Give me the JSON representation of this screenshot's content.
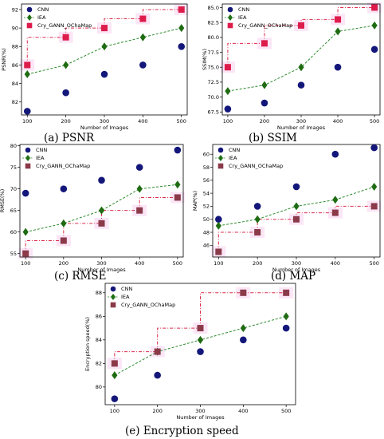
{
  "legend_labels": [
    "CNN",
    "IEA",
    "Cry_GANN_OChaMap"
  ],
  "colors": {
    "cnn": "#14177a",
    "iea": "#1f6b12",
    "cry_panels_ab": "#dd1c4c",
    "cry_panels_cde": "#8b3a4a",
    "line_iea": "#2a8a2a",
    "line_cry": "#dd2a4a",
    "glow": "#f4b8e4"
  },
  "chart_data": [
    {
      "type": "scatter",
      "caption": "(a) PSNR",
      "xlabel": "Number of Images",
      "ylabel": "PSNR(%)",
      "x": [
        100,
        200,
        300,
        400,
        500
      ],
      "xlim": [
        85,
        515
      ],
      "ylim": [
        80.6,
        92.6
      ],
      "yticks": [
        82,
        84,
        86,
        88,
        90,
        92
      ],
      "ytick_labels": [
        "82",
        "84",
        "86",
        "88",
        "90",
        "92"
      ],
      "legend_position": "top-left",
      "series": [
        {
          "name": "CNN",
          "marker": "circle",
          "values": [
            81,
            83,
            85,
            86,
            88
          ]
        },
        {
          "name": "IEA",
          "marker": "diamond",
          "line": "dashed",
          "values": [
            85,
            86,
            88,
            89,
            90
          ]
        },
        {
          "name": "Cry_GANN_OChaMap",
          "marker": "square",
          "line": "step-dashdot",
          "values": [
            86,
            89,
            90,
            91,
            92
          ]
        }
      ]
    },
    {
      "type": "scatter",
      "caption": "(b) SSIM",
      "xlabel": "Number of Images",
      "ylabel": "SSIM(%)",
      "x": [
        100,
        200,
        300,
        400,
        500
      ],
      "xlim": [
        85,
        515
      ],
      "ylim": [
        67,
        85.6
      ],
      "yticks": [
        67.5,
        70,
        72.5,
        75,
        77.5,
        80,
        82.5,
        85
      ],
      "ytick_labels": [
        "67.5",
        "70.0",
        "72.5",
        "75.0",
        "77.5",
        "80.0",
        "82.5",
        "85.0"
      ],
      "legend_position": "top-left",
      "series": [
        {
          "name": "CNN",
          "marker": "circle",
          "values": [
            68,
            69,
            72,
            75,
            78
          ]
        },
        {
          "name": "IEA",
          "marker": "diamond",
          "line": "dashed",
          "values": [
            71,
            72,
            75,
            81,
            82
          ]
        },
        {
          "name": "Cry_GANN_OChaMap",
          "marker": "square",
          "line": "step-dashdot",
          "values": [
            75,
            79,
            82,
            83,
            85
          ]
        }
      ]
    },
    {
      "type": "scatter",
      "caption": "(c) RMSE",
      "xlabel": "Number of Images",
      "ylabel": "RMSE(%)",
      "x": [
        100,
        200,
        300,
        400,
        500
      ],
      "xlim": [
        85,
        515
      ],
      "ylim": [
        54.2,
        80.3
      ],
      "yticks": [
        55,
        60,
        65,
        70,
        75,
        80
      ],
      "ytick_labels": [
        "55",
        "60",
        "65",
        "70",
        "75",
        "80"
      ],
      "legend_position": "top-left",
      "series": [
        {
          "name": "CNN",
          "marker": "circle",
          "values": [
            69,
            70,
            72,
            75,
            79
          ]
        },
        {
          "name": "IEA",
          "marker": "diamond",
          "line": "dashed",
          "values": [
            60,
            62,
            65,
            70,
            71
          ]
        },
        {
          "name": "Cry_GANN_OChaMap",
          "marker": "square",
          "line": "step-dashdot",
          "values": [
            55,
            58,
            62,
            65,
            68
          ]
        }
      ]
    },
    {
      "type": "scatter",
      "caption": "(d) MAP",
      "xlabel": "Number of Images",
      "ylabel": "MAP(%)",
      "x": [
        100,
        200,
        300,
        400,
        500
      ],
      "xlim": [
        85,
        515
      ],
      "ylim": [
        44.2,
        61.5
      ],
      "yticks": [
        46,
        48,
        50,
        52,
        54,
        56,
        58,
        60
      ],
      "ytick_labels": [
        "46",
        "48",
        "50",
        "52",
        "54",
        "56",
        "58",
        "60"
      ],
      "legend_position": "top-left",
      "series": [
        {
          "name": "CNN",
          "marker": "circle",
          "values": [
            50,
            52,
            55,
            60,
            61
          ]
        },
        {
          "name": "IEA",
          "marker": "diamond",
          "line": "dashed",
          "values": [
            49,
            50,
            52,
            53,
            55
          ]
        },
        {
          "name": "Cry_GANN_OChaMap",
          "marker": "square",
          "line": "step-dashdot",
          "values": [
            45,
            48,
            50,
            51,
            52
          ]
        }
      ]
    },
    {
      "type": "scatter",
      "caption": "(e) Encryption speed",
      "xlabel": "Number of Images",
      "ylabel": "Encryption speed(%)",
      "x": [
        100,
        200,
        300,
        400,
        500
      ],
      "xlim": [
        78,
        522
      ],
      "ylim": [
        78.5,
        88.8
      ],
      "yticks": [
        80,
        82,
        84,
        86,
        88
      ],
      "ytick_labels": [
        "80",
        "82",
        "84",
        "86",
        "88"
      ],
      "legend_position": "top-left",
      "series": [
        {
          "name": "CNN",
          "marker": "circle",
          "values": [
            79,
            81,
            83,
            84,
            85
          ]
        },
        {
          "name": "IEA",
          "marker": "diamond",
          "line": "dashed",
          "values": [
            81,
            83,
            84,
            85,
            86
          ]
        },
        {
          "name": "Cry_GANN_OChaMap",
          "marker": "square",
          "line": "step-dashdot",
          "values": [
            82,
            83,
            85,
            88,
            88
          ]
        }
      ]
    }
  ]
}
